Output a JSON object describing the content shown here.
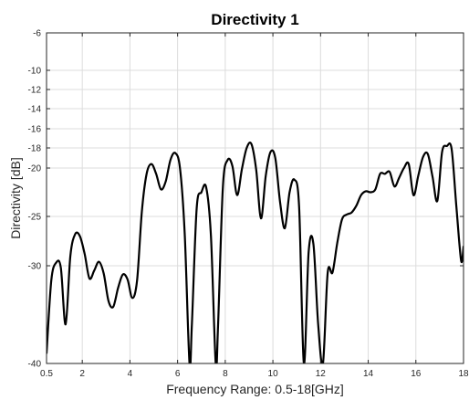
{
  "chart_data": {
    "type": "line",
    "title": "Directivity 1",
    "xlabel": "Frequency Range: 0.5-18[GHz]",
    "ylabel": "Directivity [dB]",
    "xlim": [
      0.5,
      18
    ],
    "ylim": [
      -40,
      -6
    ],
    "y_scale": "nonlinear (dB-style spacing)",
    "grid": true,
    "x_ticks": [
      0.5,
      2,
      4,
      6,
      8,
      10,
      12,
      14,
      16,
      18
    ],
    "x_tick_labels": [
      "0.5",
      "2",
      "4",
      "6",
      "8",
      "10",
      "12",
      "14",
      "16",
      "18"
    ],
    "y_ticks": [
      -6,
      -10,
      -12,
      -14,
      -16,
      -18,
      -20,
      -25,
      -30,
      -40
    ],
    "y_tick_labels": [
      "-6",
      "-10",
      "-12",
      "-14",
      "-16",
      "-18",
      "-20",
      "-25",
      "-30",
      "-40"
    ],
    "series": [
      {
        "color": "#000000",
        "x": [
          0.5,
          0.7,
          0.9,
          1.1,
          1.3,
          1.5,
          1.7,
          1.9,
          2.1,
          2.3,
          2.5,
          2.7,
          2.9,
          3.1,
          3.3,
          3.5,
          3.7,
          3.9,
          4.1,
          4.3,
          4.5,
          4.7,
          4.9,
          5.1,
          5.3,
          5.5,
          5.7,
          5.9,
          6.1,
          6.3,
          6.5,
          6.6,
          6.8,
          7.0,
          7.2,
          7.4,
          7.6,
          7.7,
          7.9,
          8.1,
          8.3,
          8.5,
          8.7,
          8.9,
          9.1,
          9.3,
          9.5,
          9.7,
          9.9,
          10.1,
          10.3,
          10.5,
          10.7,
          10.9,
          11.1,
          11.3,
          11.5,
          11.7,
          11.9,
          12.1,
          12.3,
          12.5,
          12.7,
          12.9,
          13.1,
          13.3,
          13.5,
          13.7,
          13.9,
          14.1,
          14.3,
          14.5,
          14.7,
          14.9,
          15.1,
          15.3,
          15.5,
          15.7,
          15.9,
          16.1,
          16.3,
          16.5,
          16.7,
          16.9,
          17.1,
          17.3,
          17.5,
          17.7,
          17.9,
          18.0
        ],
        "y": [
          -39.0,
          -31.5,
          -29.7,
          -30.2,
          -36.0,
          -29.0,
          -26.8,
          -27.0,
          -28.8,
          -31.3,
          -30.5,
          -29.6,
          -30.8,
          -33.6,
          -34.2,
          -32.3,
          -30.9,
          -31.4,
          -33.3,
          -31.5,
          -24.5,
          -20.6,
          -19.6,
          -20.6,
          -22.2,
          -21.4,
          -19.2,
          -18.5,
          -20.0,
          -26.8,
          -40.0,
          -36.0,
          -24.2,
          -22.5,
          -22.0,
          -27.0,
          -40.0,
          -36.0,
          -22.0,
          -19.2,
          -19.8,
          -22.8,
          -20.1,
          -18.0,
          -17.6,
          -20.2,
          -25.2,
          -20.8,
          -18.4,
          -19.0,
          -23.5,
          -26.2,
          -22.5,
          -21.2,
          -24.0,
          -40.0,
          -28.6,
          -27.8,
          -36.0,
          -40.0,
          -30.7,
          -30.7,
          -27.7,
          -25.3,
          -24.8,
          -24.6,
          -23.9,
          -22.8,
          -22.4,
          -22.5,
          -22.2,
          -20.6,
          -20.6,
          -20.4,
          -21.9,
          -21.0,
          -20.0,
          -19.6,
          -22.8,
          -20.8,
          -18.9,
          -18.6,
          -20.9,
          -23.4,
          -18.4,
          -17.8,
          -18.1,
          -24.0,
          -29.5,
          -28.0
        ]
      }
    ]
  }
}
